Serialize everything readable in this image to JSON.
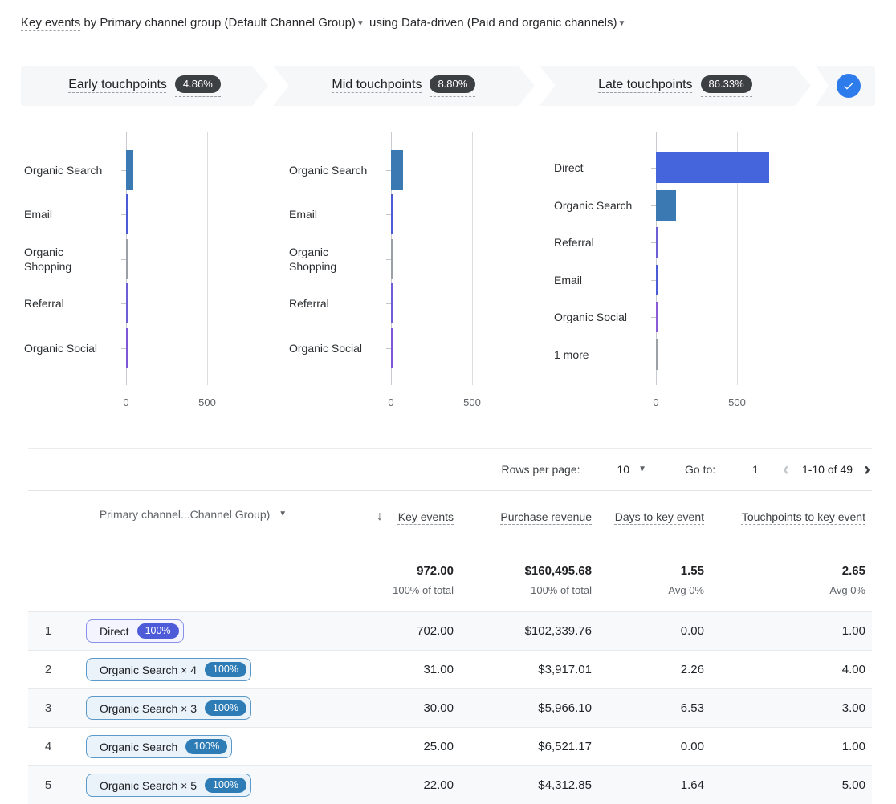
{
  "header": {
    "metric": "Key events",
    "by_word": "by",
    "dimension": "Primary channel group (Default Channel Group)",
    "using_word": "using",
    "model": "Data-driven (Paid and organic channels)"
  },
  "funnel": {
    "stages": [
      {
        "label": "Early touchpoints",
        "pct": "4.86%"
      },
      {
        "label": "Mid touchpoints",
        "pct": "8.80%"
      },
      {
        "label": "Late touchpoints",
        "pct": "86.33%"
      }
    ],
    "check_icon": "checkmark"
  },
  "chart_data": [
    {
      "type": "bar",
      "title": "Early touchpoints",
      "orientation": "horizontal",
      "categories": [
        "Organic Search",
        "Email",
        "Organic Shopping",
        "Referral",
        "Organic Social"
      ],
      "values": [
        45,
        8,
        4,
        8,
        6
      ],
      "colors": [
        "#3a79b2",
        "#4a5bd8",
        "#9aa0a6",
        "#6e5ed6",
        "#7e57d6"
      ],
      "xticks": [
        0,
        500
      ],
      "xlim": [
        0,
        900
      ],
      "grid": true
    },
    {
      "type": "bar",
      "title": "Mid touchpoints",
      "orientation": "horizontal",
      "categories": [
        "Organic Search",
        "Email",
        "Organic Shopping",
        "Referral",
        "Organic Social"
      ],
      "values": [
        72,
        8,
        4,
        8,
        7
      ],
      "colors": [
        "#3a79b2",
        "#4a5bd8",
        "#9aa0a6",
        "#6e5ed6",
        "#7e57d6"
      ],
      "xticks": [
        0,
        500
      ],
      "xlim": [
        0,
        900
      ],
      "grid": true
    },
    {
      "type": "bar",
      "title": "Late touchpoints",
      "orientation": "horizontal",
      "categories": [
        "Direct",
        "Organic Search",
        "Referral",
        "Email",
        "Organic Social",
        "1 more"
      ],
      "values": [
        700,
        125,
        6,
        6,
        5,
        3
      ],
      "colors": [
        "#4465dc",
        "#3a79b2",
        "#6e5ed6",
        "#4a5bd8",
        "#8a5bd6",
        "#9aa0a6"
      ],
      "xticks": [
        0,
        500
      ],
      "xlim": [
        0,
        1200
      ],
      "grid": true
    }
  ],
  "pagination": {
    "rows_label": "Rows per page:",
    "rows_value": "10",
    "goto_label": "Go to:",
    "goto_value": "1",
    "range": "1-10 of 49",
    "prev_icon": "chevron-left",
    "next_icon": "chevron-right"
  },
  "table": {
    "dim_header": "Primary channel...Channel Group)",
    "sort_icon": "arrow-down",
    "metric_headers": [
      "Key events",
      "Purchase revenue",
      "Days to key event",
      "Touchpoints to key event"
    ],
    "totals": {
      "values": [
        "972.00",
        "$160,495.68",
        "1.55",
        "2.65"
      ],
      "subs": [
        "100% of total",
        "100% of total",
        "Avg 0%",
        "Avg 0%"
      ]
    },
    "rows": [
      {
        "n": "1",
        "chip": "Direct",
        "badge": "100%",
        "chip_style": "indigo",
        "key": "702.00",
        "revenue": "$102,339.76",
        "days": "0.00",
        "touchpoints": "1.00"
      },
      {
        "n": "2",
        "chip": "Organic Search × 4",
        "badge": "100%",
        "chip_style": "blue",
        "key": "31.00",
        "revenue": "$3,917.01",
        "days": "2.26",
        "touchpoints": "4.00"
      },
      {
        "n": "3",
        "chip": "Organic Search × 3",
        "badge": "100%",
        "chip_style": "blue",
        "key": "30.00",
        "revenue": "$5,966.10",
        "days": "6.53",
        "touchpoints": "3.00"
      },
      {
        "n": "4",
        "chip": "Organic Search",
        "badge": "100%",
        "chip_style": "blue",
        "key": "25.00",
        "revenue": "$6,521.17",
        "days": "0.00",
        "touchpoints": "1.00"
      },
      {
        "n": "5",
        "chip": "Organic Search × 5",
        "badge": "100%",
        "chip_style": "blue",
        "key": "22.00",
        "revenue": "$4,312.85",
        "days": "1.64",
        "touchpoints": "5.00"
      }
    ]
  },
  "colors": {
    "steel_blue": "#3a79b2",
    "indigo_blue": "#4465dc",
    "check_blue": "#2e7cec",
    "badge_gray": "#3c4043",
    "chip_indigo": {
      "bg": "#f3f4fe",
      "border": "#8791ea",
      "badge": "#4d5bd8"
    },
    "chip_blue": {
      "bg": "#eaf2fa",
      "border": "#5b99c9",
      "badge": "#2d7cb5"
    },
    "row_alt_bg": "#f8f9fa",
    "gridline": "#dadce0"
  }
}
